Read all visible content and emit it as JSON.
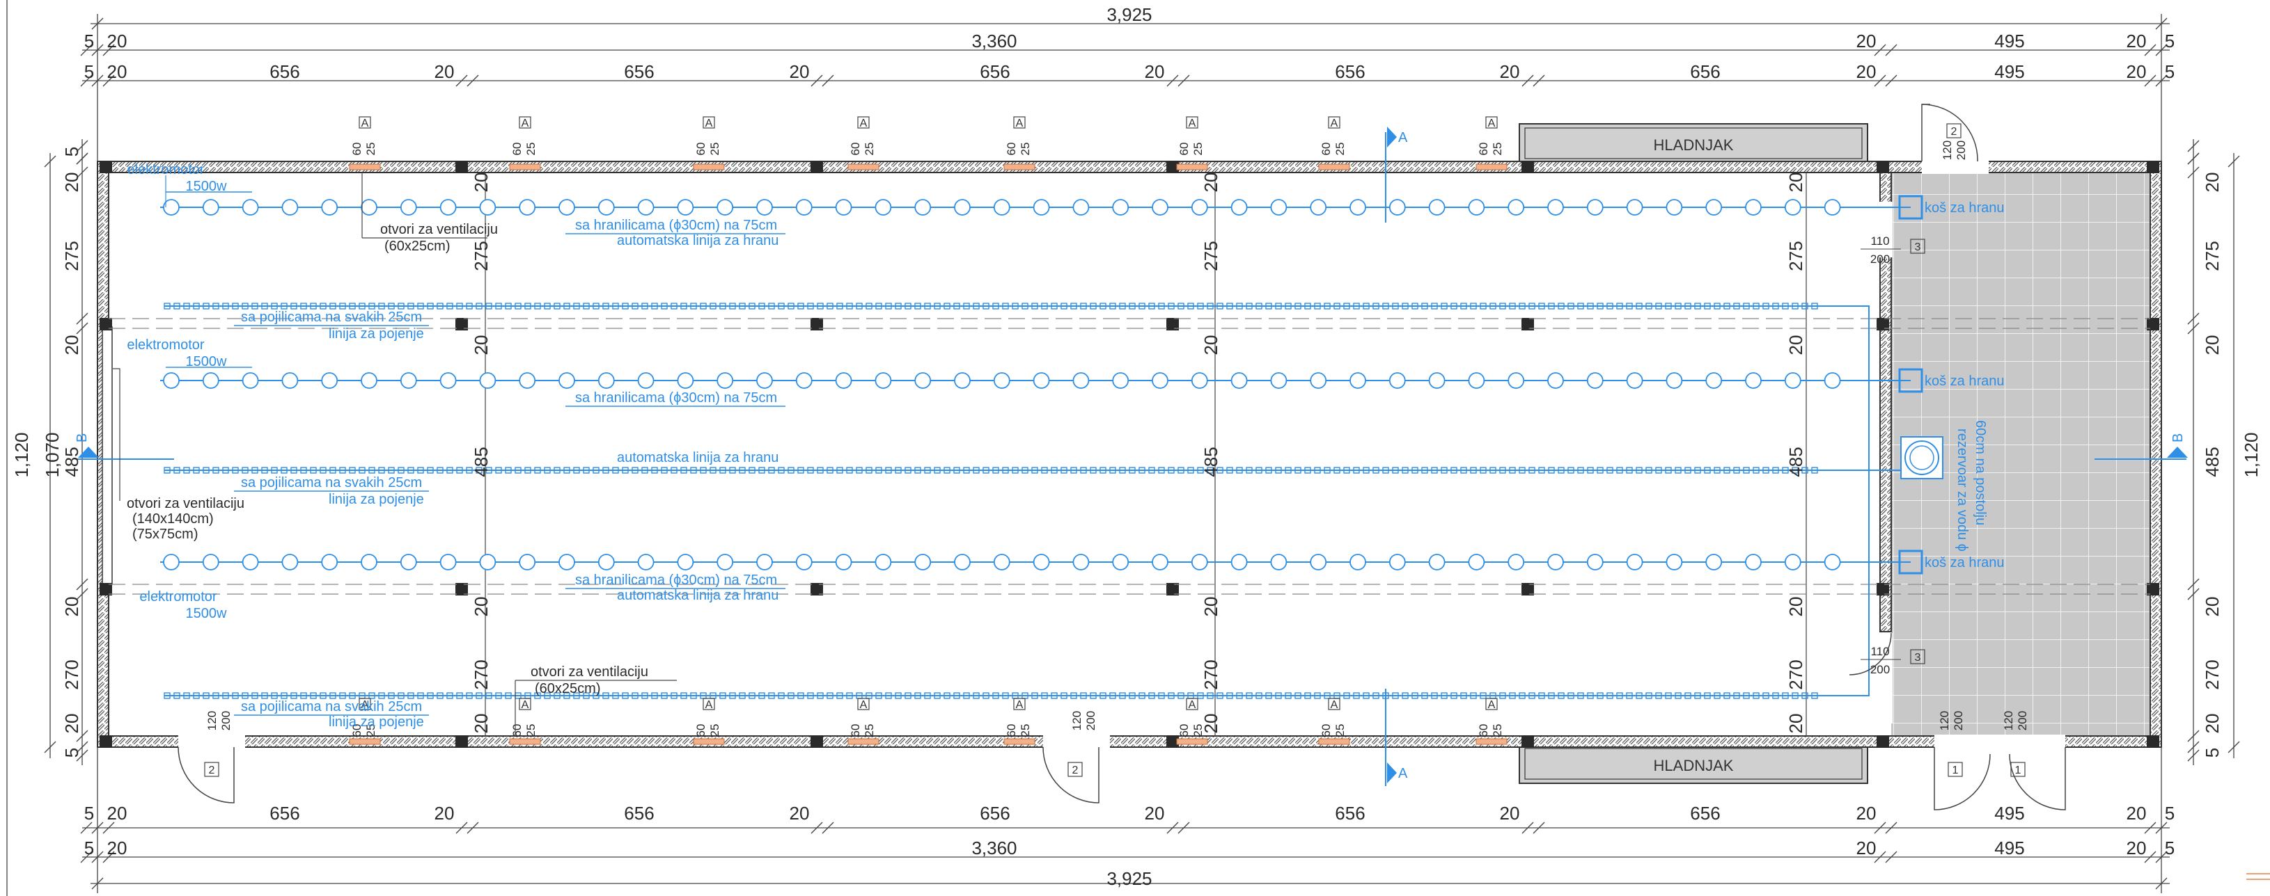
{
  "dimensions": {
    "total_overall": "3,925",
    "main_overall": "3,360",
    "right_section": "495",
    "bay": "656",
    "col_20": "20",
    "edge_5": "5",
    "height_overall": "1,120",
    "height_inner": "1,070",
    "v_bay_275": "275",
    "v_bay_485": "485",
    "v_bay_270": "270",
    "vent_h": "60",
    "vent_w": "25",
    "door_h": "120",
    "door_w": "200",
    "win_h": "110",
    "win_w": "200"
  },
  "rooms": {
    "cold_top": "HLADNJAK",
    "cold_bottom": "HLADNJAK"
  },
  "section_marks": {
    "a": "A",
    "b": "B",
    "vent_tag": "A"
  },
  "door_tags": {
    "d1": "1",
    "d2": "2",
    "d3": "3"
  },
  "notes": {
    "motor_name": "elektromotor",
    "motor_power": "1500w",
    "feeders_note": "sa hranilicama (ϕ30cm) na 75cm",
    "feed_line": "automatska linija za hranu",
    "drinkers_note": "sa pojilicama na svakih 25cm",
    "water_line": "linija za pojenje",
    "vent_openings": "otvori za ventilaciju",
    "vent_size_small": "(60x25cm)",
    "vent_size_a": "(140x140cm)",
    "vent_size_b": "(75x75cm)",
    "feed_bin": "koš za hranu",
    "water_tank_1": "rezervoar za vodu ϕ",
    "water_tank_2": "60cm na postolju"
  },
  "colors": {
    "equipment_blue": "#2f8fe6",
    "line_grey": "#333333",
    "service_fill": "#c8c8c8",
    "cold_room_fill": "#d0d0d0"
  }
}
